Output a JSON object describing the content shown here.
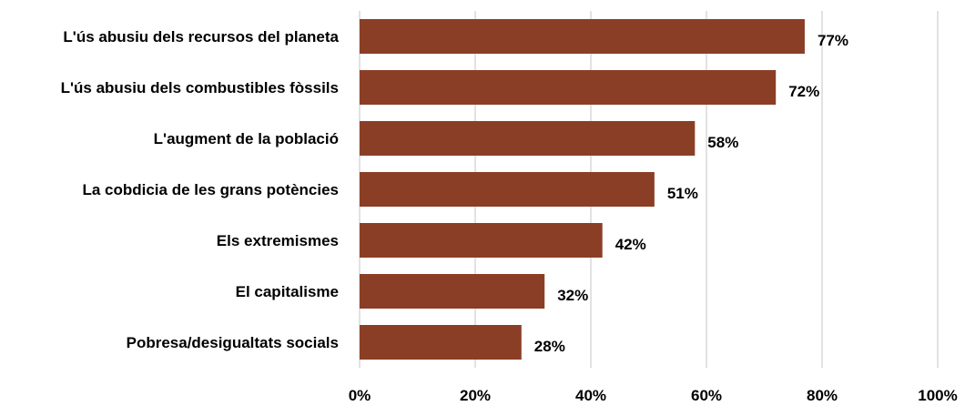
{
  "chart_data": {
    "type": "bar",
    "orientation": "horizontal",
    "categories": [
      "L'ús abusiu dels recursos del planeta",
      "L'ús abusiu dels combustibles fòssils",
      "L'augment de la població",
      "La cobdicia de les grans potències",
      "Els extremismes",
      "El capitalisme",
      "Pobresa/desigualtats socials"
    ],
    "values": [
      77,
      72,
      58,
      51,
      42,
      32,
      28
    ],
    "value_labels": [
      "77%",
      "72%",
      "58%",
      "51%",
      "42%",
      "32%",
      "28%"
    ],
    "xlim": [
      0,
      100
    ],
    "x_ticks": [
      0,
      20,
      40,
      60,
      80,
      100
    ],
    "x_tick_labels": [
      "0%",
      "20%",
      "40%",
      "60%",
      "80%",
      "100%"
    ],
    "bar_color": "#8B3E26",
    "grid": true,
    "legend": false
  }
}
